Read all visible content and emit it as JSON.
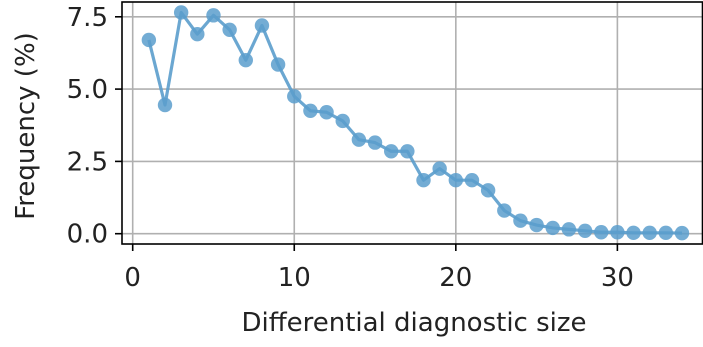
{
  "chart_data": {
    "type": "line",
    "title": "",
    "xlabel": "Differential diagnostic size",
    "ylabel": "Frequency (%)",
    "xlim": [
      0,
      34
    ],
    "ylim": [
      0,
      7.8
    ],
    "x_ticks": [
      "0",
      "10",
      "20",
      "30"
    ],
    "y_ticks": [
      "0.0",
      "2.5",
      "5.0",
      "7.5"
    ],
    "grid": true,
    "legend": "none",
    "series": [
      {
        "color": "#5b9dcc",
        "x": [
          1,
          2,
          3,
          4,
          5,
          6,
          7,
          8,
          9,
          10,
          11,
          12,
          13,
          14,
          15,
          16,
          17,
          18,
          19,
          20,
          21,
          22,
          23,
          24,
          25,
          26,
          27,
          28,
          29,
          30,
          31,
          32,
          33,
          34
        ],
        "y": [
          6.7,
          4.45,
          7.65,
          6.9,
          7.55,
          7.05,
          6.0,
          7.2,
          5.85,
          4.75,
          4.25,
          4.2,
          3.9,
          3.25,
          3.15,
          2.85,
          2.85,
          1.85,
          2.25,
          1.85,
          1.85,
          1.5,
          0.8,
          0.45,
          0.3,
          0.2,
          0.15,
          0.1,
          0.05,
          0.05,
          0.03,
          0.03,
          0.03,
          0.02
        ]
      }
    ]
  }
}
